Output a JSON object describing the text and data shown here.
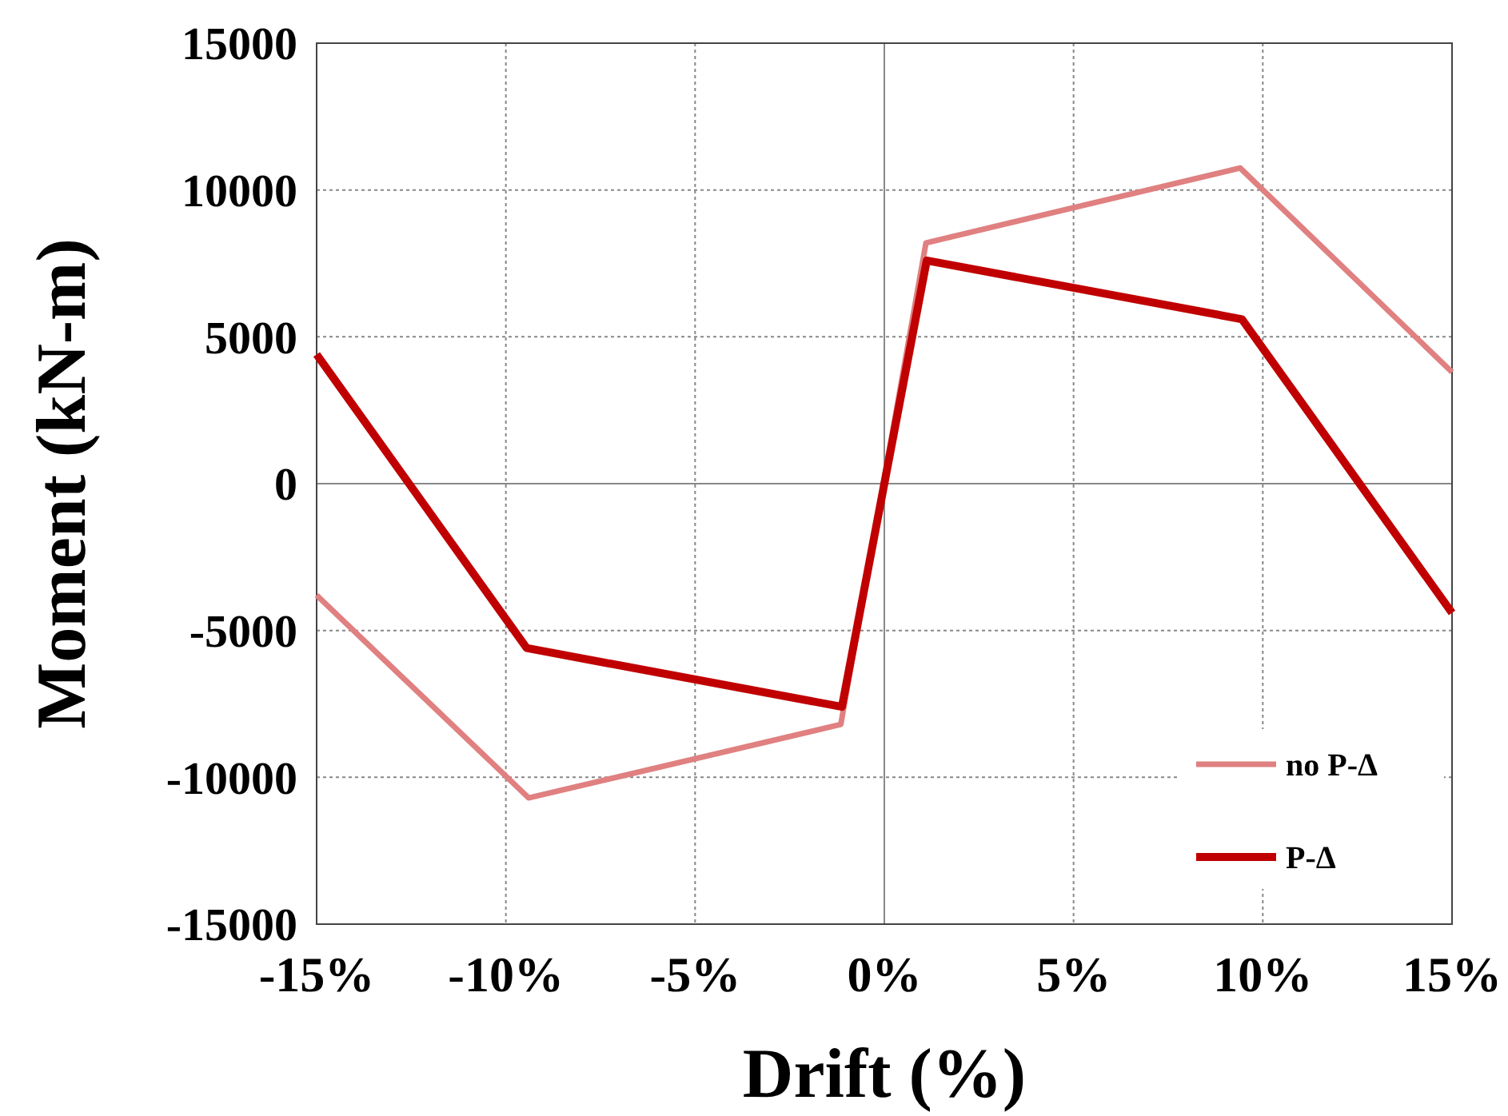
{
  "chart_data": {
    "type": "line",
    "xlabel": "Drift (%)",
    "ylabel": "Moment (kN-m)",
    "xlim": [
      -15,
      15
    ],
    "xticks": [
      {
        "value": -15,
        "label": "-15%"
      },
      {
        "value": -10,
        "label": "-10%"
      },
      {
        "value": -5,
        "label": "-5%"
      },
      {
        "value": 0,
        "label": "0%"
      },
      {
        "value": 5,
        "label": "5%"
      },
      {
        "value": 10,
        "label": "10%"
      },
      {
        "value": 15,
        "label": "15%"
      }
    ],
    "ylim": [
      -15000,
      15000
    ],
    "yticks": [
      -15000,
      -10000,
      -5000,
      0,
      5000,
      10000,
      15000
    ],
    "grid": true,
    "legend": "bottom right",
    "marker": "none",
    "line_style": "solid",
    "series": [
      {
        "name": "no P-Δ",
        "color": "#e08080",
        "x": [
          -15,
          -9.4,
          -1.15,
          1.1,
          9.4,
          15
        ],
        "values": [
          -3800,
          -10700,
          -8200,
          8200,
          10750,
          3800
        ]
      },
      {
        "name": "P-Δ",
        "color": "#c00000",
        "x": [
          -15,
          -9.45,
          -1.12,
          1.12,
          9.45,
          15
        ],
        "values": [
          4400,
          -5600,
          -7600,
          7600,
          5600,
          -4400
        ]
      }
    ]
  }
}
